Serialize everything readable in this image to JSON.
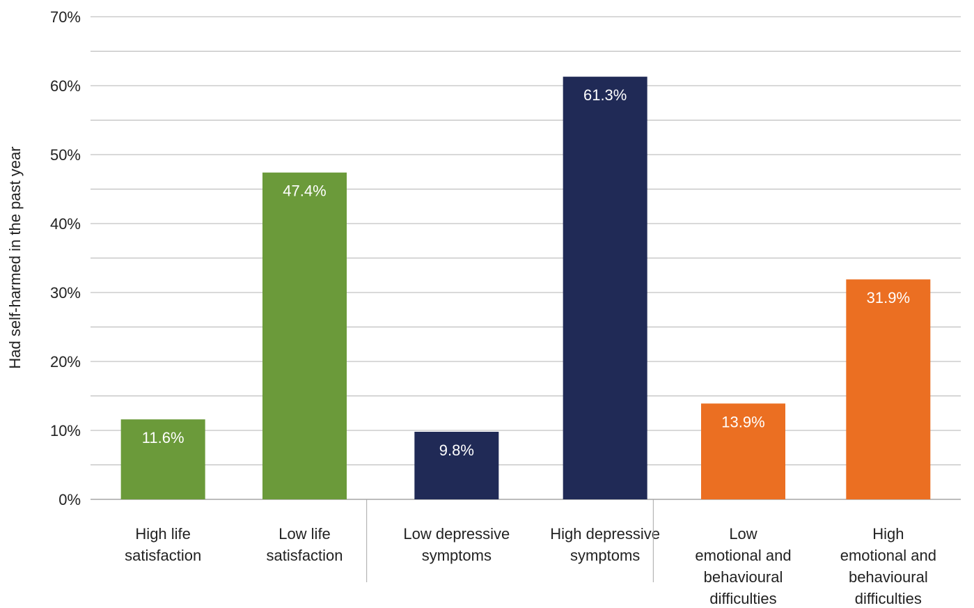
{
  "chart_data": {
    "type": "bar",
    "ylabel": "Had self-harmed in the past year",
    "ylim": [
      0,
      70
    ],
    "yticks": [
      "0%",
      "10%",
      "20%",
      "30%",
      "40%",
      "50%",
      "60%",
      "70%"
    ],
    "grid": true,
    "categories": [
      [
        "High life",
        "satisfaction"
      ],
      [
        "Low life",
        "satisfaction"
      ],
      [
        "Low depressive",
        "symptoms"
      ],
      [
        "High depressive",
        "symptoms"
      ],
      [
        "Low",
        "emotional and",
        "behavioural",
        "difficulties"
      ],
      [
        "High",
        "emotional and",
        "behavioural",
        "difficulties"
      ]
    ],
    "values": [
      11.6,
      47.4,
      9.8,
      61.3,
      13.9,
      31.9
    ],
    "data_labels": [
      "11.6%",
      "47.4%",
      "9.8%",
      "61.3%",
      "13.9%",
      "31.9%"
    ],
    "colors": [
      "#6b9a3a",
      "#6b9a3a",
      "#202a56",
      "#202a56",
      "#eb6f22",
      "#eb6f22"
    ]
  }
}
